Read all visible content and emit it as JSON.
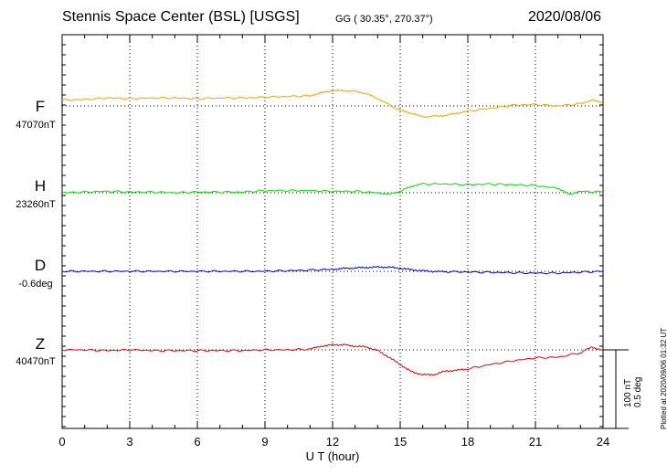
{
  "header": {
    "station": "Stennis Space Center (BSL)  [USGS]",
    "coords": "GG ( 30.35°, 270.37°)",
    "date": "2020/08/06"
  },
  "footer": {
    "plotted": "Plotted at 2020/09/06 01:32 UT",
    "scale_nt": "100 nT",
    "scale_deg": "0.5 deg"
  },
  "colors": {
    "F": "#f4a300",
    "H": "#00dd00",
    "D": "#0000cc",
    "Z": "#ee0000",
    "grid": "#000000"
  },
  "chart_data": {
    "type": "line",
    "xlabel": "U T (hour)",
    "xlim": [
      0,
      24
    ],
    "xticks": [
      "0",
      "3",
      "6",
      "9",
      "12",
      "15",
      "18",
      "21",
      "24"
    ],
    "grid": true,
    "scale": "100 nT / 0.5 deg per scale bar",
    "series": [
      {
        "name": "F",
        "unit": "nT",
        "baseline_label": "47070nT",
        "baseline": 47070,
        "x": [
          0,
          1,
          2,
          3,
          4,
          5,
          6,
          7,
          8,
          9,
          10,
          11,
          11.5,
          12,
          12.5,
          13,
          13.5,
          14,
          14.5,
          15,
          15.5,
          16,
          16.5,
          17,
          17.5,
          18,
          19,
          20,
          21,
          22,
          23,
          23.5,
          24
        ],
        "values": [
          47078,
          47079,
          47081,
          47080,
          47081,
          47081,
          47080,
          47081,
          47081,
          47082,
          47083,
          47084,
          47088,
          47091,
          47091,
          47090,
          47087,
          47080,
          47072,
          47064,
          47060,
          47055,
          47056,
          47057,
          47060,
          47063,
          47067,
          47071,
          47072,
          47070,
          47073,
          47078,
          47074
        ]
      },
      {
        "name": "H",
        "unit": "nT",
        "baseline_label": "23260nT",
        "baseline": 23260,
        "x": [
          0,
          1,
          2,
          3,
          4,
          5,
          6,
          7,
          8,
          9,
          10,
          11,
          12,
          13,
          14,
          14.5,
          15,
          15.5,
          16,
          17,
          18,
          19,
          20,
          21,
          22,
          22.5,
          23,
          24
        ],
        "values": [
          23260,
          23261,
          23262,
          23261,
          23261,
          23260,
          23261,
          23261,
          23261,
          23263,
          23263,
          23263,
          23262,
          23262,
          23260,
          23258,
          23262,
          23269,
          23272,
          23272,
          23271,
          23272,
          23271,
          23270,
          23266,
          23258,
          23262,
          23261
        ]
      },
      {
        "name": "D",
        "unit": "deg",
        "baseline_label": "-0.6deg",
        "baseline": -0.6,
        "x": [
          0,
          1,
          2,
          3,
          4,
          5,
          6,
          7,
          8,
          9,
          10,
          11,
          12,
          12.5,
          13,
          13.5,
          14,
          14.5,
          15,
          15.5,
          16,
          16.5,
          17,
          18,
          19,
          20,
          21,
          22,
          23,
          24
        ],
        "values": [
          -0.6,
          -0.6,
          -0.6,
          -0.6,
          -0.6,
          -0.6,
          -0.6,
          -0.6,
          -0.6,
          -0.599,
          -0.596,
          -0.592,
          -0.586,
          -0.581,
          -0.577,
          -0.574,
          -0.571,
          -0.572,
          -0.579,
          -0.589,
          -0.597,
          -0.601,
          -0.602,
          -0.605,
          -0.607,
          -0.61,
          -0.613,
          -0.612,
          -0.606,
          -0.6
        ]
      },
      {
        "name": "Z",
        "unit": "nT",
        "baseline_label": "40470nT",
        "baseline": 40470,
        "x": [
          0,
          1,
          2,
          3,
          4,
          5,
          6,
          7,
          8,
          9,
          10,
          11,
          11.5,
          12,
          12.5,
          13,
          13.5,
          14,
          14.5,
          15,
          15.5,
          16,
          16.5,
          17,
          17.5,
          18,
          19,
          20,
          21,
          22,
          23,
          23.5,
          24
        ],
        "values": [
          40470,
          40470,
          40469,
          40470,
          40469,
          40469,
          40469,
          40469,
          40469,
          40470,
          40470,
          40471,
          40475,
          40477,
          40477,
          40475,
          40474,
          40469,
          40460,
          40450,
          40440,
          40436,
          40436,
          40441,
          40442,
          40444,
          40450,
          40455,
          40459,
          40460,
          40466,
          40474,
          40469
        ]
      }
    ]
  }
}
